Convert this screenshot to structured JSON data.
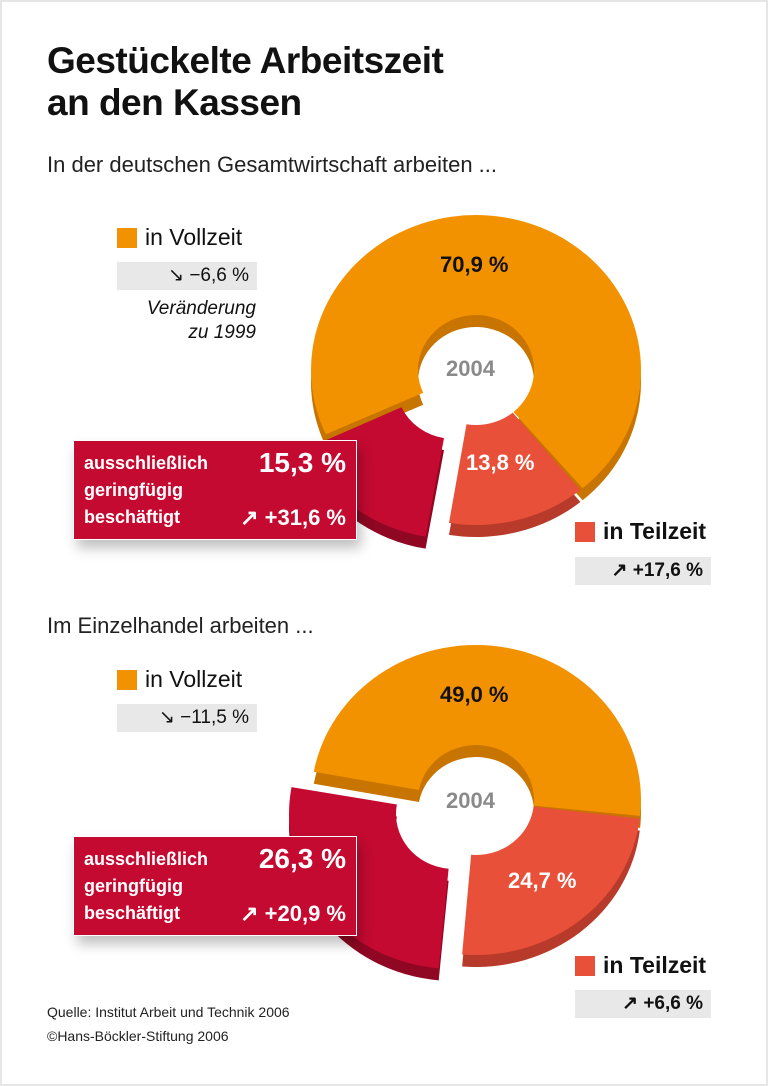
{
  "title_line1": "Gestückelte Arbeitszeit",
  "title_line2": "an den Kassen",
  "colors": {
    "vollzeit": "#f39200",
    "teilzeit": "#e8503a",
    "geringfuegig": "#c50a31",
    "change_bg": "#e8e8e8"
  },
  "change_note": [
    "Veränderung",
    "zu 1999"
  ],
  "chart_data": [
    {
      "type": "pie",
      "subtitle": "In der deutschen Gesamtwirtschaft arbeiten ...",
      "center_label": "2004",
      "categories": [
        "in Vollzeit",
        "in Teilzeit",
        "ausschließlich geringfügig beschäftigt"
      ],
      "values": [
        70.9,
        13.8,
        15.3
      ],
      "value_labels": [
        "70,9 %",
        "13,8 %",
        "15,3 %"
      ],
      "changes_since_1999": [
        "−6,6 %",
        "+17,6 %",
        "+31,6 %"
      ],
      "change_icons": [
        "arrow-down-right",
        "arrow-up-right",
        "arrow-up-right"
      ]
    },
    {
      "type": "pie",
      "subtitle": "Im Einzelhandel arbeiten ...",
      "center_label": "2004",
      "categories": [
        "in Vollzeit",
        "in Teilzeit",
        "ausschließlich geringfügig beschäftigt"
      ],
      "values": [
        49.0,
        24.7,
        26.3
      ],
      "value_labels": [
        "49,0 %",
        "24,7 %",
        "26,3 %"
      ],
      "changes_since_1999": [
        "−11,5 %",
        "+6,6 %",
        "+20,9 %"
      ],
      "change_icons": [
        "arrow-down-right",
        "arrow-up-right",
        "arrow-up-right"
      ]
    }
  ],
  "gering_lines": [
    "ausschließlich",
    "geringfügig",
    "beschäftigt"
  ],
  "source": "Quelle: Institut Arbeit und Technik 2006",
  "copyright": "©Hans-Böckler-Stiftung 2006"
}
